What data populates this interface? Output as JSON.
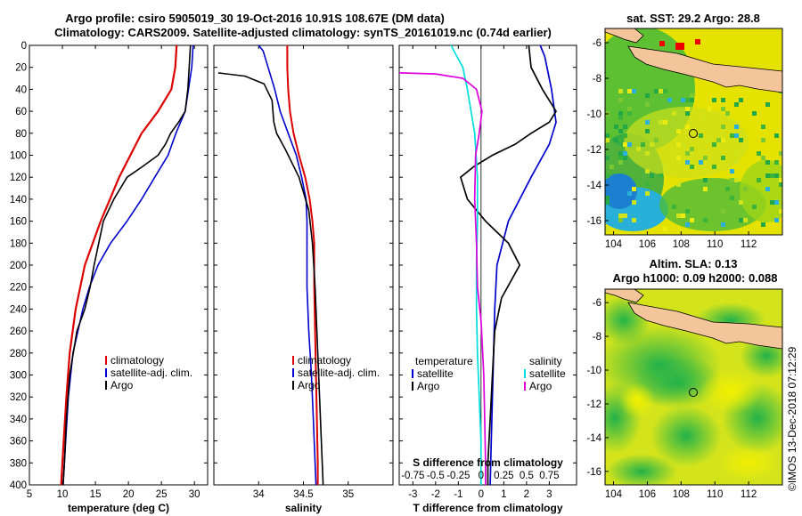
{
  "title_line1": "Argo profile: csiro 5905019_30 19-Oct-2016 10.91S 108.67E (DM data)",
  "title_line2": "Climatology: CARS2009. Satellite-adjusted climatology: synTS_20161019.nc (0.74d earlier)",
  "colors": {
    "climatology": "#dd0000",
    "satellite": "#0000cc",
    "argo": "#000000",
    "sat_salinity": "#00dddd",
    "clim_salinity": "#dd00dd"
  },
  "chart_data": [
    {
      "type": "line",
      "name": "temperature",
      "xlabel": "temperature (deg C)",
      "xlim": [
        5,
        32
      ],
      "ylim": [
        0,
        400
      ],
      "xticks": [
        "5",
        "10",
        "15",
        "20",
        "25",
        "30"
      ],
      "yticks": [
        "0",
        "20",
        "40",
        "60",
        "80",
        "100",
        "120",
        "140",
        "160",
        "180",
        "200",
        "220",
        "240",
        "260",
        "280",
        "300",
        "320",
        "340",
        "360",
        "380",
        "400"
      ],
      "legend": [
        "climatology",
        "satellite-adj. clim.",
        "Argo"
      ],
      "series": [
        {
          "name": "climatology",
          "depth": [
            0,
            20,
            40,
            60,
            80,
            100,
            120,
            140,
            160,
            180,
            200,
            240,
            280,
            320,
            360,
            400
          ],
          "values": [
            27.3,
            27.1,
            26.5,
            24.5,
            22,
            20.3,
            18.6,
            17.2,
            15.8,
            14.6,
            13.4,
            12,
            11.1,
            10.6,
            10.2,
            9.8
          ]
        },
        {
          "name": "satellite-adj. clim.",
          "depth": [
            0,
            20,
            40,
            60,
            80,
            100,
            120,
            140,
            160,
            180,
            200,
            220,
            240,
            280,
            320,
            360,
            400
          ],
          "values": [
            29.8,
            29.6,
            29.1,
            28.6,
            27.2,
            26,
            24,
            22,
            19.8,
            17.3,
            15.4,
            14.1,
            13.1,
            11.6,
            10.9,
            10.5,
            10.1
          ]
        },
        {
          "name": "Argo",
          "depth": [
            0,
            20,
            40,
            60,
            70,
            80,
            90,
            100,
            110,
            120,
            140,
            160,
            180,
            200,
            220,
            240,
            260,
            300,
            340,
            380,
            400
          ],
          "values": [
            29.4,
            29.2,
            29,
            28.6,
            27.6,
            26.4,
            25.6,
            24.5,
            22.2,
            19.8,
            17.8,
            16.2,
            15.5,
            14.8,
            14.2,
            13.4,
            12.2,
            11.1,
            10.6,
            10.3,
            10.1
          ]
        }
      ]
    },
    {
      "type": "line",
      "name": "salinity",
      "xlabel": "salinity",
      "xlim": [
        33.5,
        35.5
      ],
      "ylim": [
        0,
        400
      ],
      "xticks": [
        "34",
        "34.5",
        "35"
      ],
      "legend": [
        "climatology",
        "satellite-adj. clim.",
        "Argo"
      ],
      "series": [
        {
          "name": "climatology",
          "depth": [
            0,
            20,
            40,
            60,
            80,
            100,
            120,
            140,
            160,
            180,
            200,
            220,
            260,
            300,
            340,
            380,
            400
          ],
          "values": [
            34.32,
            34.32,
            34.33,
            34.35,
            34.39,
            34.45,
            34.52,
            34.57,
            34.6,
            34.62,
            34.62,
            34.62,
            34.63,
            34.64,
            34.65,
            34.66,
            34.66
          ]
        },
        {
          "name": "satellite-adj. clim.",
          "depth": [
            0,
            5,
            40,
            60,
            80,
            100,
            120,
            140,
            160,
            180,
            200,
            220,
            260,
            300,
            340,
            380,
            400
          ],
          "values": [
            34.0,
            34.05,
            34.18,
            34.24,
            34.33,
            34.42,
            34.48,
            34.53,
            34.54,
            34.54,
            34.54,
            34.54,
            34.56,
            34.59,
            34.61,
            34.63,
            34.64
          ]
        },
        {
          "name": "Argo",
          "depth": [
            25,
            28,
            35,
            50,
            70,
            80,
            95,
            120,
            150,
            180,
            220,
            260,
            300,
            340,
            380,
            400
          ],
          "values": [
            33.55,
            33.85,
            34.06,
            34.15,
            34.17,
            34.2,
            34.3,
            34.45,
            34.56,
            34.6,
            34.63,
            34.65,
            34.67,
            34.69,
            34.71,
            34.72
          ]
        }
      ]
    },
    {
      "type": "line",
      "name": "difference",
      "xlabel": "T difference from climatology",
      "x2label": "S difference from climatology",
      "xlim": [
        -3.6,
        4.2
      ],
      "ylim": [
        0,
        400
      ],
      "xticks": [
        "-3",
        "-2",
        "-1",
        "0",
        "1",
        "2",
        "3"
      ],
      "x2ticks": [
        "-0.75",
        "-0.5",
        "-0.25",
        "0",
        "0.25",
        "0.5",
        "0.75"
      ],
      "legend_temperature": {
        "heading": "temperature",
        "items": [
          "satellite",
          "Argo"
        ]
      },
      "legend_salinity": {
        "heading": "salinity",
        "items": [
          "satellite",
          "Argo"
        ]
      },
      "series": [
        {
          "name": "T satellite",
          "depth": [
            0,
            10,
            40,
            70,
            90,
            120,
            160,
            200,
            240,
            280,
            320,
            360,
            400
          ],
          "values": [
            2.6,
            2.8,
            3.1,
            3.3,
            3.0,
            2.2,
            1.2,
            0.7,
            0.6,
            0.55,
            0.5,
            0.45,
            0.4
          ]
        },
        {
          "name": "T Argo",
          "depth": [
            0,
            20,
            40,
            60,
            70,
            80,
            90,
            100,
            110,
            120,
            140,
            160,
            180,
            200,
            230,
            260,
            300,
            340,
            380,
            400
          ],
          "values": [
            2.1,
            2.2,
            2.7,
            3.3,
            3.0,
            2.2,
            1.5,
            0.5,
            -0.3,
            -0.9,
            -0.6,
            0.2,
            1.2,
            1.7,
            0.9,
            0.6,
            0.5,
            0.4,
            0.3,
            0.3
          ]
        },
        {
          "name": "S satellite",
          "depth": [
            0,
            8,
            20,
            40,
            60,
            80,
            120,
            160,
            200,
            240,
            280,
            320,
            360,
            400
          ],
          "values": [
            -0.33,
            -0.28,
            -0.2,
            -0.15,
            -0.11,
            -0.07,
            -0.04,
            -0.04,
            -0.05,
            -0.05,
            -0.04,
            -0.02,
            0.0,
            0.0
          ]
        },
        {
          "name": "S Argo",
          "depth": [
            25,
            26,
            30,
            40,
            60,
            80,
            100,
            140,
            180,
            220,
            250,
            300,
            340,
            380,
            400
          ],
          "values": [
            -0.9,
            -0.5,
            -0.2,
            -0.05,
            0.01,
            -0.02,
            -0.06,
            -0.07,
            -0.05,
            -0.04,
            0.0,
            0.03,
            0.04,
            0.05,
            0.05
          ]
        }
      ]
    }
  ],
  "map_top": {
    "title": "sat. SST: 29.2 Argo: 28.8",
    "yticks": [
      "-6",
      "-8",
      "-10",
      "-12",
      "-14",
      "-16"
    ],
    "xticks": [
      "104",
      "106",
      "108",
      "110",
      "112"
    ]
  },
  "map_bottom": {
    "title_line1": "Altim. SLA: 0.13",
    "title_line2": "Argo h1000: 0.09 h2000: 0.088",
    "yticks": [
      "-6",
      "-8",
      "-10",
      "-12",
      "-14",
      "-16"
    ],
    "xticks": [
      "104",
      "106",
      "108",
      "110",
      "112"
    ]
  },
  "credit": "©IMOS 13-Dec-2018 07:12:29"
}
